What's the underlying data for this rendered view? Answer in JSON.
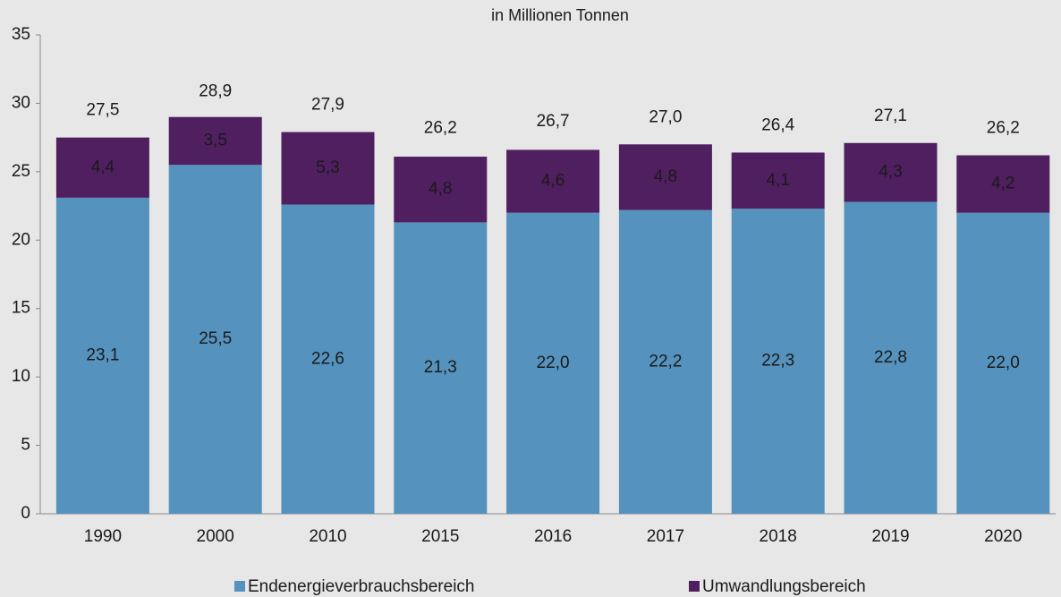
{
  "chart_data": {
    "type": "stacked_bar",
    "title": "in Millionen Tonnen",
    "categories": [
      "1990",
      "2000",
      "2010",
      "2015",
      "2016",
      "2017",
      "2018",
      "2019",
      "2020"
    ],
    "series": [
      {
        "name": "Endenergieverbrauchsbereich",
        "color": "#5592bd",
        "values": [
          23.1,
          25.5,
          22.6,
          21.3,
          22.0,
          22.2,
          22.3,
          22.8,
          22.0
        ],
        "value_labels": [
          "23,1",
          "25,5",
          "22,6",
          "21,3",
          "22,0",
          "22,2",
          "22,3",
          "22,8",
          "22,0"
        ]
      },
      {
        "name": "Umwandlungsbereich",
        "color": "#4f1f5f",
        "values": [
          4.4,
          3.5,
          5.3,
          4.8,
          4.6,
          4.8,
          4.1,
          4.3,
          4.2
        ],
        "value_labels": [
          "4,4",
          "3,5",
          "5,3",
          "4,8",
          "4,6",
          "4,8",
          "4,1",
          "4,3",
          "4,2"
        ]
      }
    ],
    "totals": [
      27.5,
      28.9,
      27.9,
      26.2,
      26.7,
      27.0,
      26.4,
      27.1,
      26.2
    ],
    "total_labels": [
      "27,5",
      "28,9",
      "27,9",
      "26,2",
      "26,7",
      "27,0",
      "26,4",
      "27,1",
      "26,2"
    ],
    "ylim": [
      0,
      35
    ],
    "yticks": [
      0,
      5,
      10,
      15,
      20,
      25,
      30,
      35
    ],
    "grid": false
  }
}
